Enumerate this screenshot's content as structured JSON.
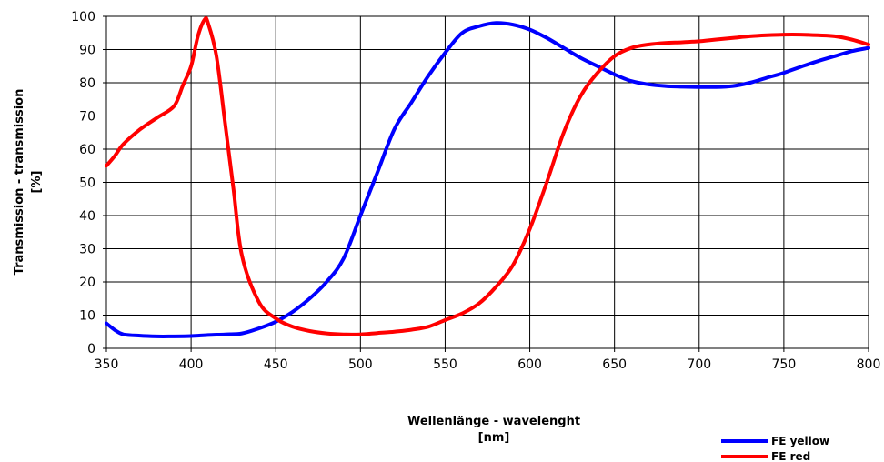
{
  "chart_data": {
    "type": "line",
    "title": "",
    "xlabel": [
      "Wellenlänge - wavelenght",
      "[nm]"
    ],
    "ylabel": [
      "Transmission - transmission",
      "[%]"
    ],
    "xlim": [
      350,
      800
    ],
    "ylim": [
      0,
      100
    ],
    "x_ticks": [
      "350",
      "400",
      "450",
      "500",
      "550",
      "600",
      "650",
      "700",
      "750",
      "800"
    ],
    "y_ticks": [
      "0",
      "10",
      "20",
      "30",
      "40",
      "50",
      "60",
      "70",
      "80",
      "90",
      "100"
    ],
    "grid": true,
    "legend_position": "bottom-right",
    "series": [
      {
        "name": "FE yellow",
        "color": "#0000ff",
        "points": [
          [
            350,
            7.5
          ],
          [
            355,
            5.5
          ],
          [
            360,
            4.2
          ],
          [
            370,
            3.8
          ],
          [
            380,
            3.6
          ],
          [
            390,
            3.6
          ],
          [
            400,
            3.7
          ],
          [
            410,
            4.0
          ],
          [
            420,
            4.2
          ],
          [
            430,
            4.5
          ],
          [
            440,
            6.0
          ],
          [
            450,
            8.0
          ],
          [
            460,
            11.0
          ],
          [
            470,
            15.0
          ],
          [
            480,
            20.0
          ],
          [
            490,
            27.0
          ],
          [
            500,
            40.0
          ],
          [
            510,
            53.0
          ],
          [
            520,
            66.0
          ],
          [
            530,
            74.0
          ],
          [
            540,
            82.0
          ],
          [
            550,
            89.0
          ],
          [
            560,
            95.0
          ],
          [
            570,
            97.0
          ],
          [
            580,
            98.0
          ],
          [
            590,
            97.5
          ],
          [
            600,
            96.0
          ],
          [
            610,
            93.5
          ],
          [
            620,
            90.5
          ],
          [
            630,
            87.5
          ],
          [
            640,
            85.0
          ],
          [
            650,
            82.5
          ],
          [
            660,
            80.5
          ],
          [
            670,
            79.5
          ],
          [
            680,
            79.0
          ],
          [
            690,
            78.8
          ],
          [
            700,
            78.7
          ],
          [
            710,
            78.7
          ],
          [
            720,
            79.0
          ],
          [
            730,
            80.0
          ],
          [
            740,
            81.5
          ],
          [
            750,
            83.0
          ],
          [
            760,
            84.8
          ],
          [
            770,
            86.5
          ],
          [
            780,
            88.0
          ],
          [
            790,
            89.5
          ],
          [
            800,
            90.5
          ]
        ]
      },
      {
        "name": "FE red",
        "color": "#ff0000",
        "points": [
          [
            350,
            55.0
          ],
          [
            355,
            58.0
          ],
          [
            360,
            61.5
          ],
          [
            370,
            66.0
          ],
          [
            380,
            69.5
          ],
          [
            390,
            73.0
          ],
          [
            395,
            79.0
          ],
          [
            400,
            85.0
          ],
          [
            404,
            94.0
          ],
          [
            408,
            99.0
          ],
          [
            410,
            98.0
          ],
          [
            415,
            88.0
          ],
          [
            420,
            68.0
          ],
          [
            425,
            48.0
          ],
          [
            430,
            28.0
          ],
          [
            440,
            14.0
          ],
          [
            450,
            9.0
          ],
          [
            460,
            6.5
          ],
          [
            470,
            5.2
          ],
          [
            480,
            4.5
          ],
          [
            490,
            4.2
          ],
          [
            500,
            4.2
          ],
          [
            510,
            4.6
          ],
          [
            520,
            5.0
          ],
          [
            530,
            5.6
          ],
          [
            540,
            6.5
          ],
          [
            550,
            8.5
          ],
          [
            560,
            10.5
          ],
          [
            570,
            13.5
          ],
          [
            580,
            18.5
          ],
          [
            590,
            25.0
          ],
          [
            600,
            36.0
          ],
          [
            610,
            50.0
          ],
          [
            620,
            65.0
          ],
          [
            630,
            76.0
          ],
          [
            640,
            83.0
          ],
          [
            650,
            88.0
          ],
          [
            660,
            90.5
          ],
          [
            670,
            91.5
          ],
          [
            680,
            92.0
          ],
          [
            690,
            92.2
          ],
          [
            700,
            92.5
          ],
          [
            710,
            93.0
          ],
          [
            720,
            93.5
          ],
          [
            730,
            94.0
          ],
          [
            740,
            94.3
          ],
          [
            750,
            94.5
          ],
          [
            760,
            94.5
          ],
          [
            770,
            94.3
          ],
          [
            780,
            94.0
          ],
          [
            790,
            93.0
          ],
          [
            800,
            91.5
          ]
        ]
      }
    ]
  }
}
